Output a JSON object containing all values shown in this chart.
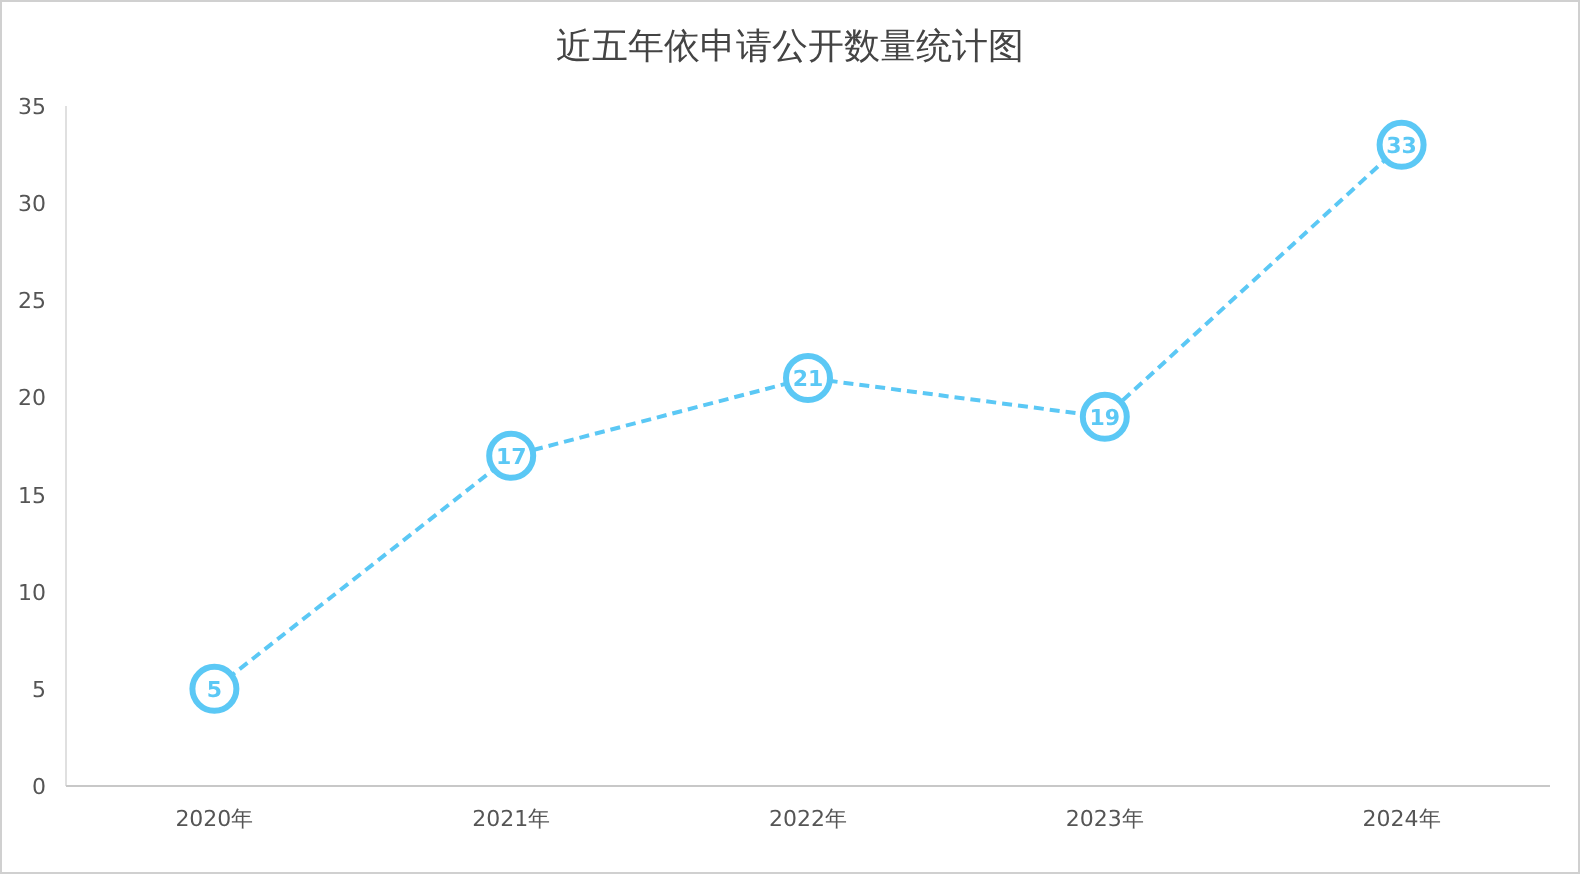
{
  "chart_data": {
    "type": "line",
    "title": "近五年依申请公开数量统计图",
    "categories": [
      "2020年",
      "2021年",
      "2022年",
      "2023年",
      "2024年"
    ],
    "series": [
      {
        "color": "#5bc8f5",
        "values": [
          5,
          17,
          21,
          19,
          33
        ]
      }
    ],
    "ylim": [
      0,
      35
    ],
    "yticks": [
      0,
      5,
      10,
      15,
      20,
      25,
      30,
      35
    ],
    "data_labels": true,
    "marker": "circle",
    "line_style": "dashed"
  }
}
